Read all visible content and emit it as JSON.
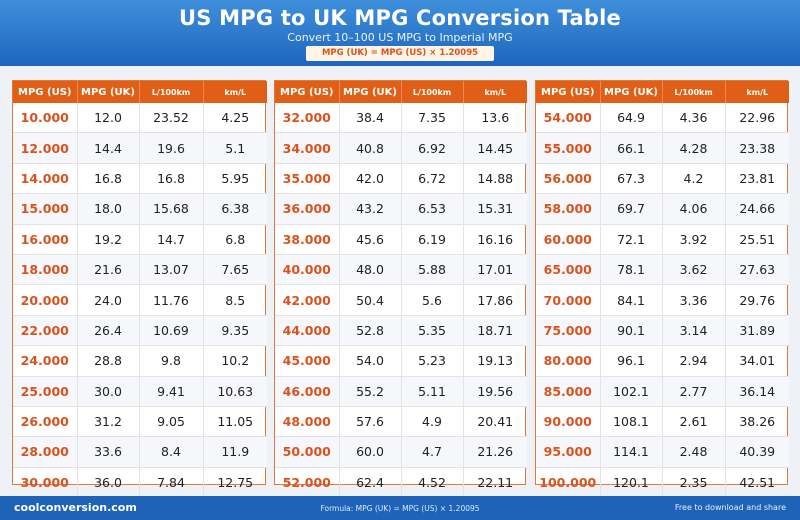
{
  "header": {
    "title": "US MPG to UK MPG Conversion Table",
    "subtitle": "Convert 10–100 US MPG to Imperial MPG",
    "formula_badge": "MPG (UK) = MPG (US) × 1.20095"
  },
  "columns": [
    "MPG (US)",
    "MPG (UK)",
    "L/100km",
    "km/L"
  ],
  "tables": [
    {
      "rows": [
        [
          "10.000",
          "12.0",
          "23.52",
          "4.25"
        ],
        [
          "12.000",
          "14.4",
          "19.6",
          "5.1"
        ],
        [
          "14.000",
          "16.8",
          "16.8",
          "5.95"
        ],
        [
          "15.000",
          "18.0",
          "15.68",
          "6.38"
        ],
        [
          "16.000",
          "19.2",
          "14.7",
          "6.8"
        ],
        [
          "18.000",
          "21.6",
          "13.07",
          "7.65"
        ],
        [
          "20.000",
          "24.0",
          "11.76",
          "8.5"
        ],
        [
          "22.000",
          "26.4",
          "10.69",
          "9.35"
        ],
        [
          "24.000",
          "28.8",
          "9.8",
          "10.2"
        ],
        [
          "25.000",
          "30.0",
          "9.41",
          "10.63"
        ],
        [
          "26.000",
          "31.2",
          "9.05",
          "11.05"
        ],
        [
          "28.000",
          "33.6",
          "8.4",
          "11.9"
        ],
        [
          "30.000",
          "36.0",
          "7.84",
          "12.75"
        ]
      ]
    },
    {
      "rows": [
        [
          "32.000",
          "38.4",
          "7.35",
          "13.6"
        ],
        [
          "34.000",
          "40.8",
          "6.92",
          "14.45"
        ],
        [
          "35.000",
          "42.0",
          "6.72",
          "14.88"
        ],
        [
          "36.000",
          "43.2",
          "6.53",
          "15.31"
        ],
        [
          "38.000",
          "45.6",
          "6.19",
          "16.16"
        ],
        [
          "40.000",
          "48.0",
          "5.88",
          "17.01"
        ],
        [
          "42.000",
          "50.4",
          "5.6",
          "17.86"
        ],
        [
          "44.000",
          "52.8",
          "5.35",
          "18.71"
        ],
        [
          "45.000",
          "54.0",
          "5.23",
          "19.13"
        ],
        [
          "46.000",
          "55.2",
          "5.11",
          "19.56"
        ],
        [
          "48.000",
          "57.6",
          "4.9",
          "20.41"
        ],
        [
          "50.000",
          "60.0",
          "4.7",
          "21.26"
        ],
        [
          "52.000",
          "62.4",
          "4.52",
          "22.11"
        ]
      ]
    },
    {
      "rows": [
        [
          "54.000",
          "64.9",
          "4.36",
          "22.96"
        ],
        [
          "55.000",
          "66.1",
          "4.28",
          "23.38"
        ],
        [
          "56.000",
          "67.3",
          "4.2",
          "23.81"
        ],
        [
          "58.000",
          "69.7",
          "4.06",
          "24.66"
        ],
        [
          "60.000",
          "72.1",
          "3.92",
          "25.51"
        ],
        [
          "65.000",
          "78.1",
          "3.62",
          "27.63"
        ],
        [
          "70.000",
          "84.1",
          "3.36",
          "29.76"
        ],
        [
          "75.000",
          "90.1",
          "3.14",
          "31.89"
        ],
        [
          "80.000",
          "96.1",
          "2.94",
          "34.01"
        ],
        [
          "85.000",
          "102.1",
          "2.77",
          "36.14"
        ],
        [
          "90.000",
          "108.1",
          "2.61",
          "38.26"
        ],
        [
          "95.000",
          "114.1",
          "2.48",
          "40.39"
        ],
        [
          "100.000",
          "120.1",
          "2.35",
          "42.51"
        ]
      ]
    }
  ],
  "footer": {
    "site": "coolconversion.com",
    "formula": "Formula: MPG (UK) = MPG (US) × 1.20095",
    "note": "Free to download and share"
  },
  "colors": {
    "header_blue": "#1e66bd",
    "header_orange": "#e05e16",
    "us_value_orange": "#d9531e"
  }
}
